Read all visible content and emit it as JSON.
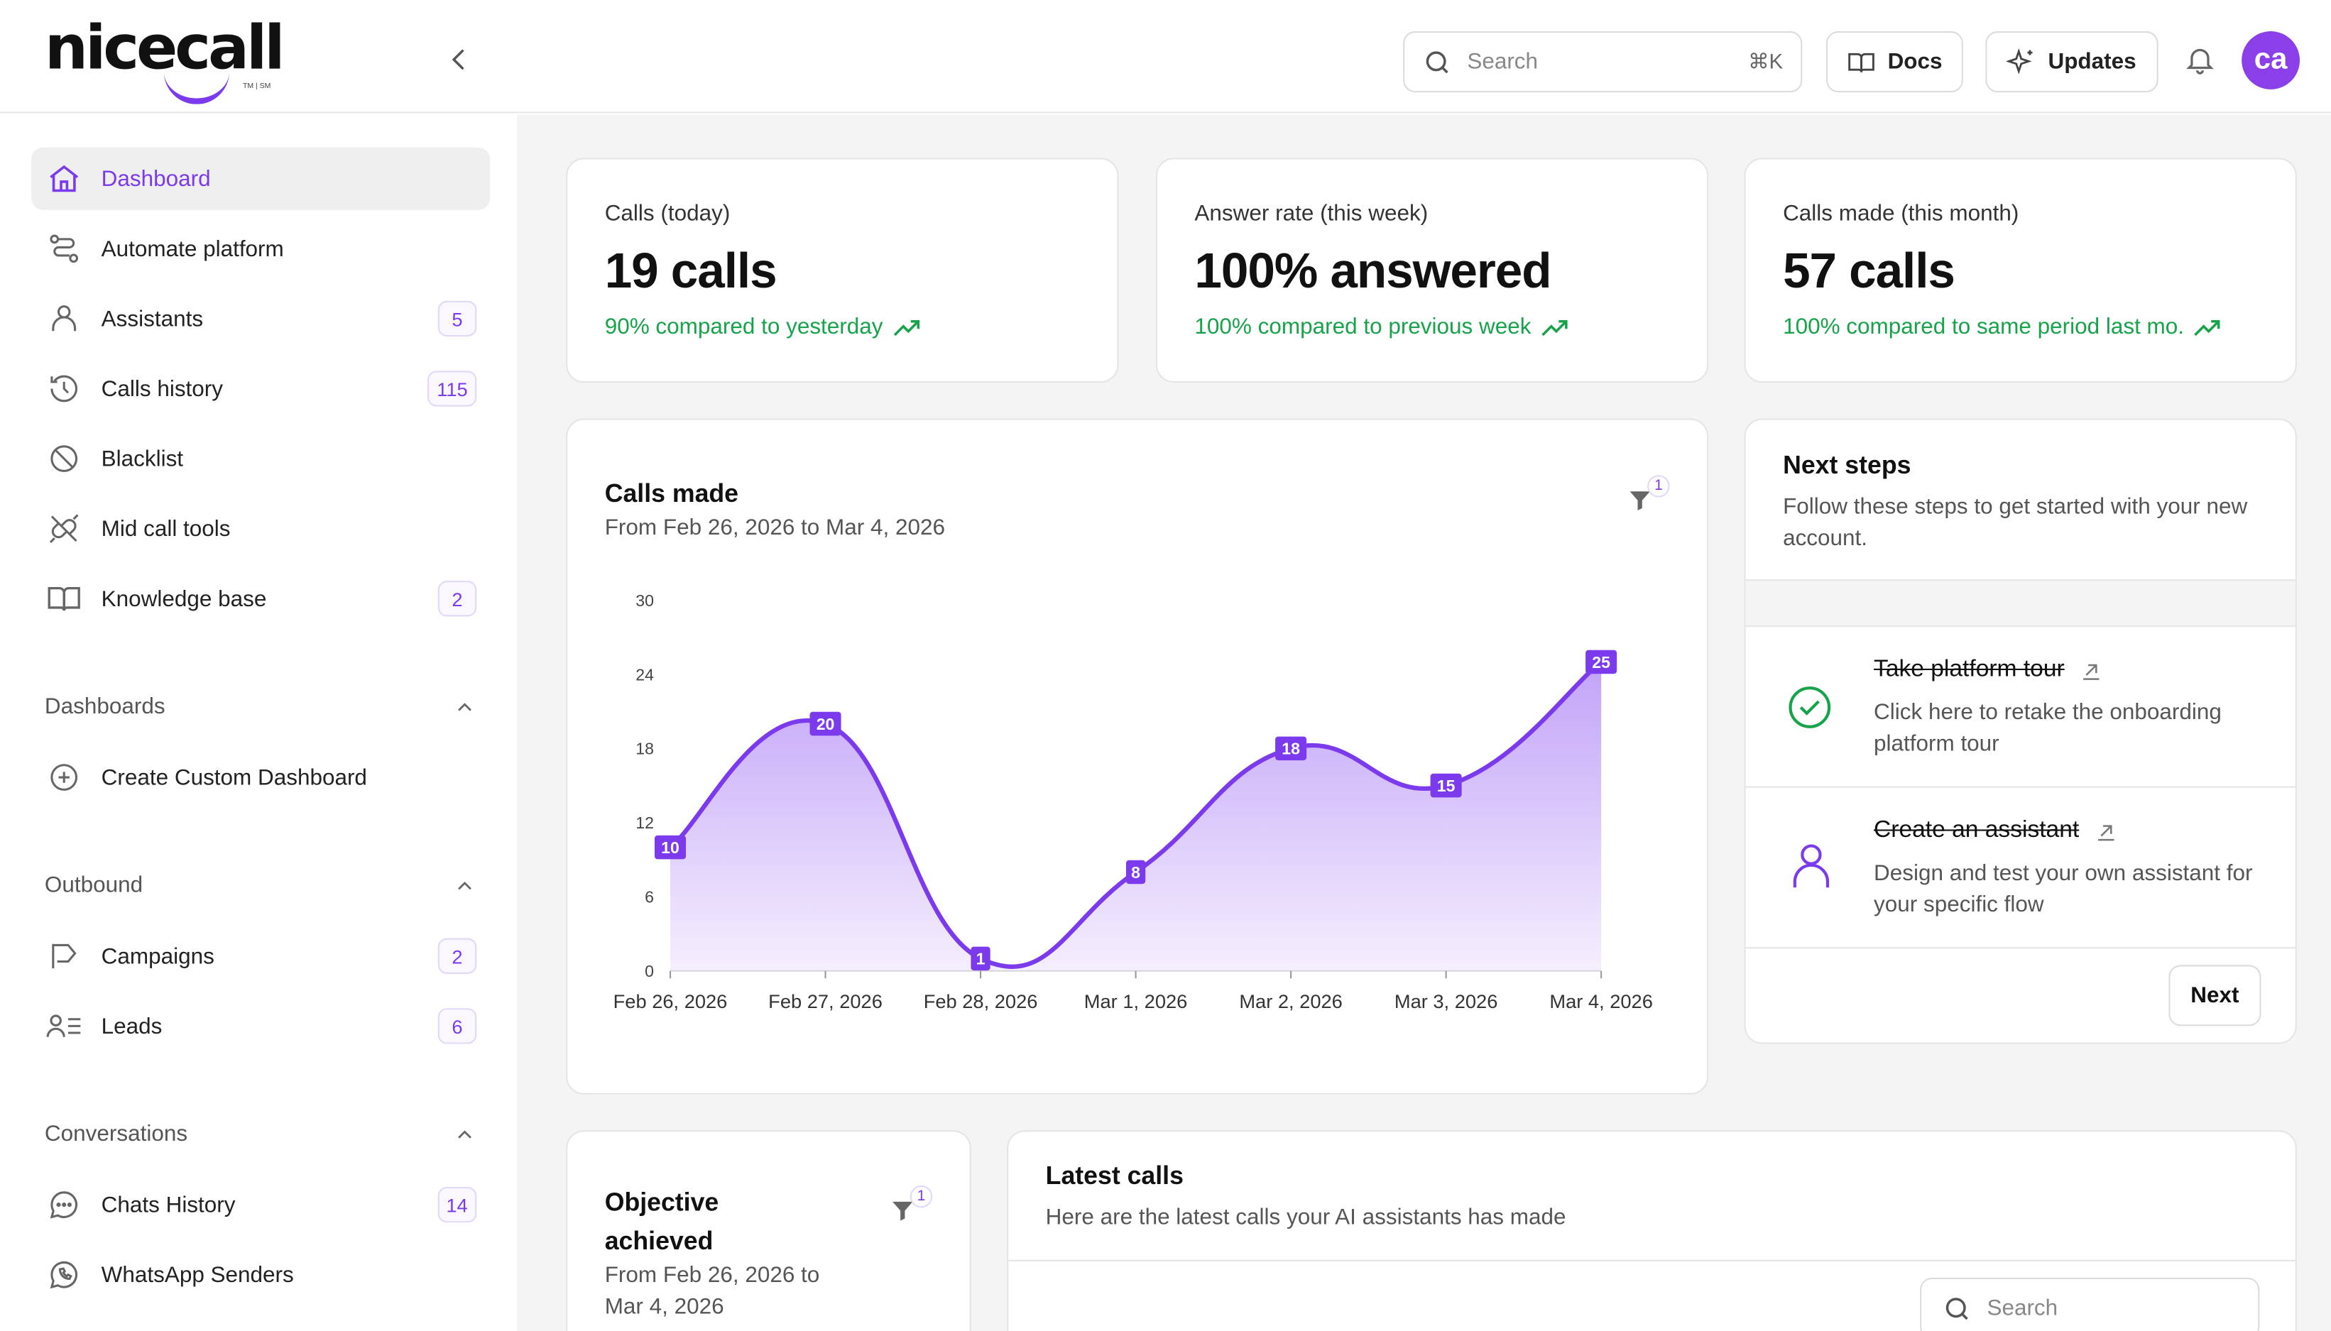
{
  "app": {
    "brand": "nicecall",
    "brand_tm": "TM | SM"
  },
  "topbar": {
    "search_placeholder": "Search",
    "search_shortcut": "⌘K",
    "docs_label": "Docs",
    "updates_label": "Updates",
    "avatar_initials": "ca"
  },
  "sidebar": {
    "items": [
      {
        "label": "Dashboard",
        "icon": "home-icon",
        "active": true
      },
      {
        "label": "Automate platform",
        "icon": "workflow-icon"
      },
      {
        "label": "Assistants",
        "icon": "user-icon",
        "badge": "5"
      },
      {
        "label": "Calls history",
        "icon": "history-icon",
        "badge": "115"
      },
      {
        "label": "Blacklist",
        "icon": "ban-icon"
      },
      {
        "label": "Mid call tools",
        "icon": "plug-icon"
      },
      {
        "label": "Knowledge base",
        "icon": "book-icon",
        "badge": "2"
      }
    ],
    "dashboards": {
      "header": "Dashboards",
      "create_label": "Create Custom Dashboard"
    },
    "outbound": {
      "header": "Outbound",
      "items": [
        {
          "label": "Campaigns",
          "badge": "2"
        },
        {
          "label": "Leads",
          "badge": "6"
        }
      ]
    },
    "conversations": {
      "header": "Conversations",
      "items": [
        {
          "label": "Chats History",
          "badge": "14"
        },
        {
          "label": "WhatsApp Senders"
        }
      ]
    }
  },
  "stats": [
    {
      "label": "Calls (today)",
      "value": "19 calls",
      "trend": "90% compared to yesterday"
    },
    {
      "label": "Answer rate (this week)",
      "value": "100% answered",
      "trend": "100% compared to previous week"
    },
    {
      "label": "Calls made (this month)",
      "value": "57 calls",
      "trend": "100% compared to same period last mo."
    }
  ],
  "calls_chart": {
    "title": "Calls made",
    "subtitle": "From Feb 26, 2026 to Mar 4, 2026",
    "filter_count": "1"
  },
  "chart_data": {
    "type": "area",
    "categories": [
      "Feb 26, 2026",
      "Feb 27, 2026",
      "Feb 28, 2026",
      "Mar 1, 2026",
      "Mar 2, 2026",
      "Mar 3, 2026",
      "Mar 4, 2026"
    ],
    "values": [
      10,
      20,
      1,
      8,
      18,
      15,
      25
    ],
    "yticks": [
      0,
      6,
      12,
      18,
      24,
      30
    ],
    "ylim": [
      0,
      30
    ],
    "color": "#7c3aed",
    "title": "",
    "xlabel": "",
    "ylabel": ""
  },
  "next_steps": {
    "title": "Next steps",
    "subtitle": "Follow these steps to get started with your new account.",
    "steps": [
      {
        "title": "Take platform tour",
        "desc": "Click here to retake the onboarding platform tour"
      },
      {
        "title": "Create an assistant",
        "desc": "Design and test your own assistant for your specific flow"
      }
    ],
    "next_label": "Next"
  },
  "objective": {
    "title": "Objective achieved",
    "subtitle": "From Feb 26, 2026 to Mar 4, 2026",
    "filter_count": "1"
  },
  "latest_calls": {
    "title": "Latest calls",
    "subtitle": "Here are the latest calls your AI assistants has made",
    "search_placeholder": "Search"
  }
}
